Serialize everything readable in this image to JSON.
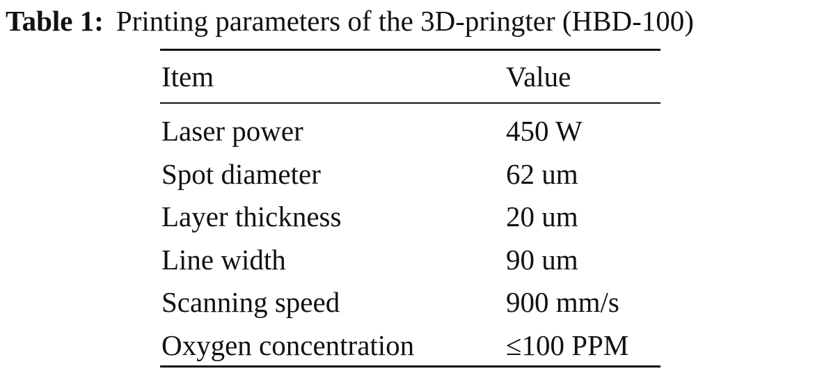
{
  "caption": {
    "label": "Table 1:",
    "text": "Printing parameters of the 3D-pringter (HBD-100)"
  },
  "table": {
    "header": [
      "Item",
      "Value"
    ],
    "rows": [
      [
        "Laser power",
        "450 W"
      ],
      [
        "Spot diameter",
        "62 um"
      ],
      [
        "Layer thickness",
        "20 um"
      ],
      [
        "Line width",
        "90 um"
      ],
      [
        "Scanning speed",
        "900 mm/s"
      ],
      [
        "Oxygen concentration",
        "≤100 PPM"
      ]
    ]
  }
}
